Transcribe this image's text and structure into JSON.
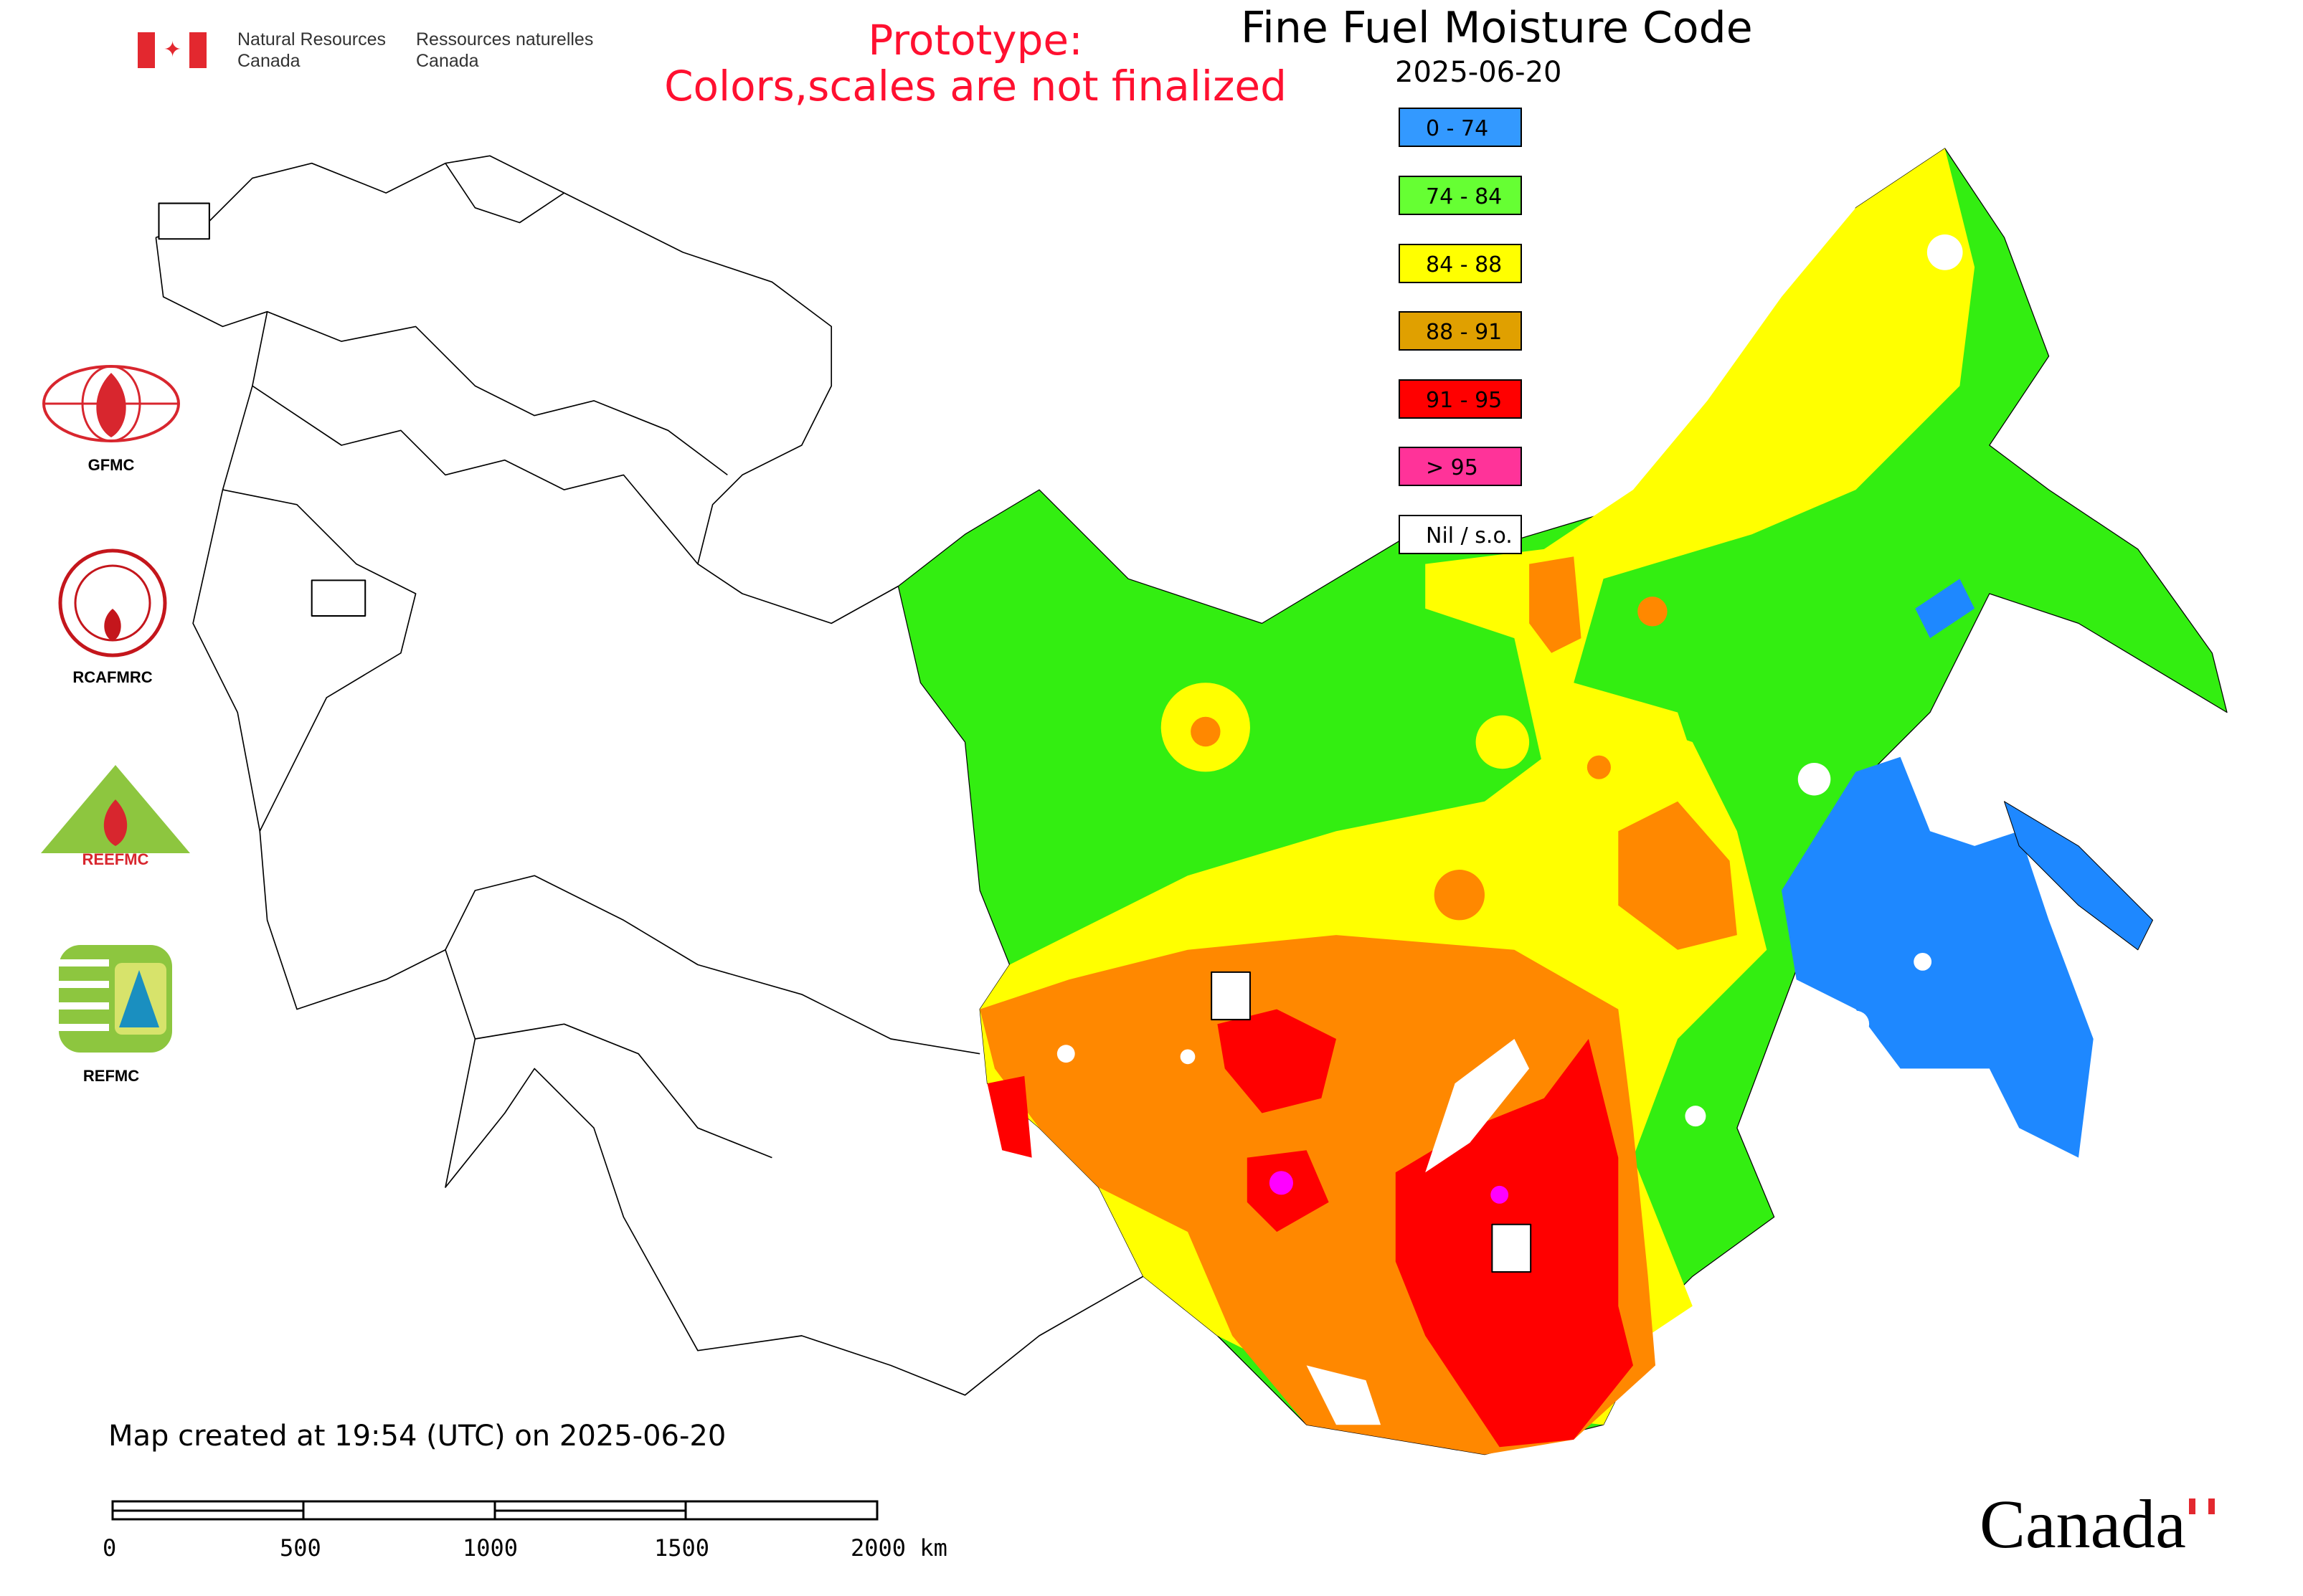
{
  "header": {
    "agency_en_line1": "Natural Resources",
    "agency_en_line2": "Canada",
    "agency_fr_line1": "Ressources naturelles",
    "agency_fr_line2": "Canada",
    "prototype_line1": "Prototype:",
    "prototype_line2": "Colors,scales are not finalized",
    "title": "Fine Fuel Moisture Code",
    "date": "2025-06-20"
  },
  "legend": [
    {
      "label": "0 - 74",
      "color": "#3399ff"
    },
    {
      "label": "74 - 84",
      "color": "#66ff33"
    },
    {
      "label": "84 - 88",
      "color": "#ffff00"
    },
    {
      "label": "88 - 91",
      "color": "#e0a000"
    },
    {
      "label": "91 - 95",
      "color": "#ff0000"
    },
    {
      "label": "> 95",
      "color": "#ff3399"
    },
    {
      "label": "Nil / s.o.",
      "color": "#ffffff"
    }
  ],
  "logos": [
    {
      "name": "GFMC",
      "label": "GFMC"
    },
    {
      "name": "RCAFMRC",
      "label": "RCAFMRC"
    },
    {
      "name": "REEFMC",
      "label": "REEFMC"
    },
    {
      "name": "REFMC",
      "label": "REFMC"
    }
  ],
  "footer": {
    "created": "Map created at 19:54 (UTC) on 2025-06-20",
    "scale_labels": [
      "0",
      "500",
      "1000",
      "1500",
      "2000 km"
    ],
    "wordmark": "Canada"
  },
  "map_colors": {
    "green": "#33ee11",
    "yellow": "#ffff00",
    "orange": "#ff8800",
    "red": "#ff0000",
    "blue": "#1e88ff",
    "magenta": "#ff00ff"
  }
}
